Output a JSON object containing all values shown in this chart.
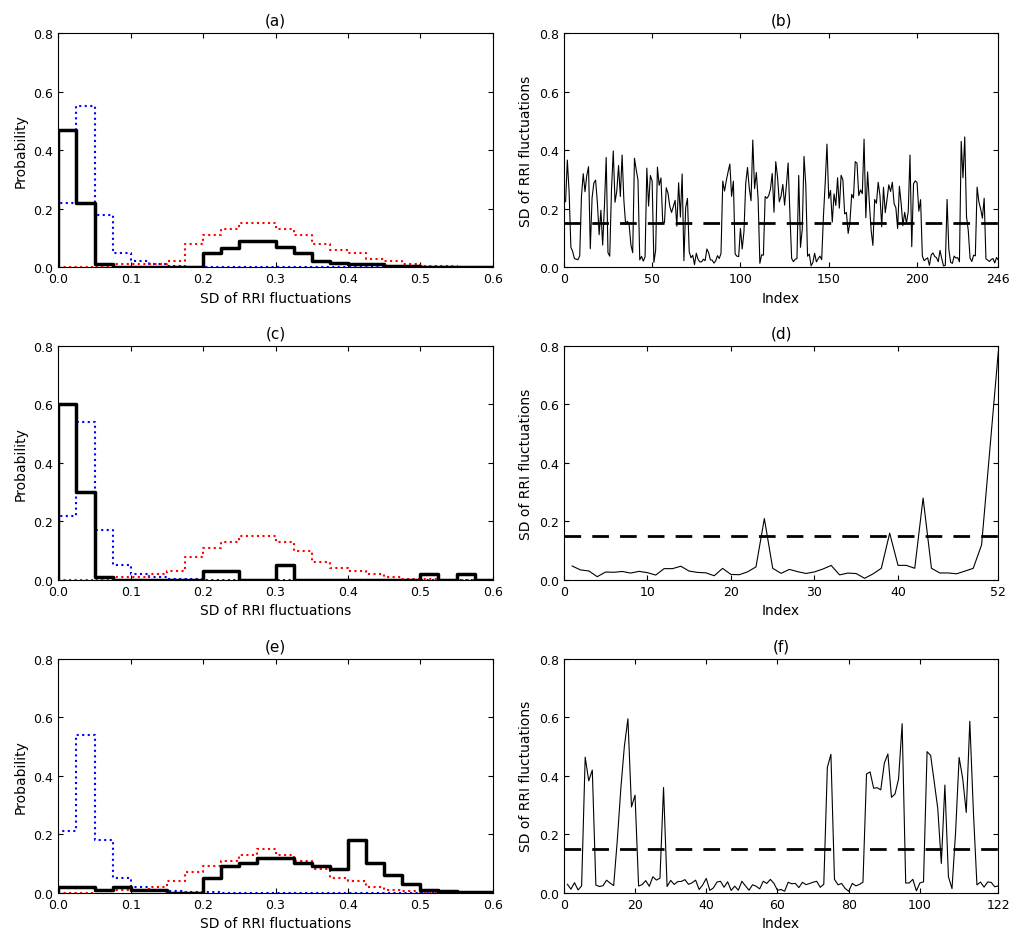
{
  "panels_left": {
    "a": {
      "title": "(a)",
      "xlabel": "SD of RRI fluctuations",
      "ylabel": "Probability",
      "xlim": [
        0,
        0.6
      ],
      "ylim": [
        0,
        0.8
      ],
      "xticks": [
        0,
        0.1,
        0.2,
        0.3,
        0.4,
        0.5,
        0.6
      ],
      "yticks": [
        0,
        0.2,
        0.4,
        0.6,
        0.8
      ],
      "black_bins": [
        0,
        0.025,
        0.05,
        0.075,
        0.1,
        0.125,
        0.15,
        0.175,
        0.2,
        0.225,
        0.25,
        0.275,
        0.3,
        0.325,
        0.35,
        0.375,
        0.4,
        0.425,
        0.45,
        0.475,
        0.5,
        0.525,
        0.55,
        0.575,
        0.6
      ],
      "black_vals": [
        0.47,
        0.22,
        0.01,
        0.0,
        0.0,
        0.0,
        0.0,
        0.0,
        0.05,
        0.065,
        0.09,
        0.09,
        0.07,
        0.05,
        0.02,
        0.015,
        0.01,
        0.01,
        0.005,
        0.003,
        0.002,
        0.001,
        0.0,
        0.0
      ],
      "blue_bins": [
        0,
        0.025,
        0.05,
        0.075,
        0.1,
        0.125,
        0.15,
        0.175,
        0.2,
        0.225,
        0.25,
        0.6
      ],
      "blue_vals": [
        0.22,
        0.55,
        0.18,
        0.05,
        0.02,
        0.01,
        0.005,
        0.002,
        0.001,
        0.0,
        0.0
      ],
      "red_bins": [
        0,
        0.025,
        0.05,
        0.075,
        0.1,
        0.125,
        0.15,
        0.175,
        0.2,
        0.225,
        0.25,
        0.275,
        0.3,
        0.325,
        0.35,
        0.375,
        0.4,
        0.425,
        0.45,
        0.475,
        0.5,
        0.525,
        0.55,
        0.575,
        0.6
      ],
      "red_vals": [
        0.0,
        0.0,
        0.005,
        0.01,
        0.01,
        0.01,
        0.02,
        0.08,
        0.11,
        0.13,
        0.15,
        0.15,
        0.13,
        0.11,
        0.08,
        0.06,
        0.05,
        0.03,
        0.02,
        0.01,
        0.005,
        0.003,
        0.002,
        0.001
      ]
    },
    "c": {
      "title": "(c)",
      "xlabel": "SD of RRI fluctuations",
      "ylabel": "Probability",
      "xlim": [
        0,
        0.6
      ],
      "ylim": [
        0,
        0.8
      ],
      "xticks": [
        0,
        0.1,
        0.2,
        0.3,
        0.4,
        0.5,
        0.6
      ],
      "yticks": [
        0,
        0.2,
        0.4,
        0.6,
        0.8
      ],
      "black_bins": [
        0,
        0.025,
        0.05,
        0.075,
        0.1,
        0.125,
        0.15,
        0.175,
        0.2,
        0.225,
        0.25,
        0.275,
        0.3,
        0.325,
        0.35,
        0.375,
        0.4,
        0.425,
        0.45,
        0.475,
        0.5,
        0.525,
        0.55,
        0.575,
        0.6
      ],
      "black_vals": [
        0.6,
        0.3,
        0.01,
        0.0,
        0.0,
        0.0,
        0.0,
        0.0,
        0.03,
        0.03,
        0.0,
        0.0,
        0.05,
        0.0,
        0.0,
        0.0,
        0.0,
        0.0,
        0.0,
        0.0,
        0.02,
        0.0,
        0.02,
        0.0
      ],
      "blue_bins": [
        0,
        0.025,
        0.05,
        0.075,
        0.1,
        0.125,
        0.15,
        0.175,
        0.2,
        0.225,
        0.25,
        0.6
      ],
      "blue_vals": [
        0.22,
        0.54,
        0.17,
        0.05,
        0.02,
        0.01,
        0.005,
        0.002,
        0.001,
        0.0,
        0.0
      ],
      "red_bins": [
        0,
        0.025,
        0.05,
        0.075,
        0.1,
        0.125,
        0.15,
        0.175,
        0.2,
        0.225,
        0.25,
        0.275,
        0.3,
        0.325,
        0.35,
        0.375,
        0.4,
        0.425,
        0.45,
        0.475,
        0.5,
        0.525,
        0.55,
        0.575,
        0.6
      ],
      "red_vals": [
        0.0,
        0.0,
        0.005,
        0.01,
        0.01,
        0.02,
        0.03,
        0.08,
        0.11,
        0.13,
        0.15,
        0.15,
        0.13,
        0.1,
        0.06,
        0.04,
        0.03,
        0.02,
        0.01,
        0.005,
        0.003,
        0.001,
        0.0,
        0.0
      ]
    },
    "e": {
      "title": "(e)",
      "xlabel": "SD of RRI fluctuations",
      "ylabel": "Probability",
      "xlim": [
        0,
        0.6
      ],
      "ylim": [
        0,
        0.8
      ],
      "xticks": [
        0,
        0.1,
        0.2,
        0.3,
        0.4,
        0.5,
        0.6
      ],
      "yticks": [
        0,
        0.2,
        0.4,
        0.6,
        0.8
      ],
      "black_bins": [
        0,
        0.025,
        0.05,
        0.075,
        0.1,
        0.125,
        0.15,
        0.175,
        0.2,
        0.225,
        0.25,
        0.275,
        0.3,
        0.325,
        0.35,
        0.375,
        0.4,
        0.425,
        0.45,
        0.475,
        0.5,
        0.525,
        0.55,
        0.575,
        0.6
      ],
      "black_vals": [
        0.02,
        0.02,
        0.01,
        0.02,
        0.01,
        0.01,
        0.0,
        0.0,
        0.05,
        0.09,
        0.1,
        0.12,
        0.12,
        0.1,
        0.09,
        0.08,
        0.18,
        0.1,
        0.06,
        0.03,
        0.01,
        0.005,
        0.003,
        0.001
      ],
      "blue_bins": [
        0,
        0.025,
        0.05,
        0.075,
        0.1,
        0.125,
        0.15,
        0.175,
        0.2,
        0.225,
        0.25,
        0.6
      ],
      "blue_vals": [
        0.21,
        0.54,
        0.18,
        0.05,
        0.02,
        0.01,
        0.005,
        0.002,
        0.001,
        0.0,
        0.0
      ],
      "red_bins": [
        0,
        0.025,
        0.05,
        0.075,
        0.1,
        0.125,
        0.15,
        0.175,
        0.2,
        0.225,
        0.25,
        0.275,
        0.3,
        0.325,
        0.35,
        0.375,
        0.4,
        0.425,
        0.45,
        0.475,
        0.5,
        0.525,
        0.55,
        0.575,
        0.6
      ],
      "red_vals": [
        0.0,
        0.0,
        0.005,
        0.01,
        0.01,
        0.02,
        0.04,
        0.07,
        0.09,
        0.11,
        0.13,
        0.15,
        0.13,
        0.11,
        0.08,
        0.05,
        0.04,
        0.02,
        0.01,
        0.005,
        0.003,
        0.001,
        0.0,
        0.0
      ]
    }
  },
  "panels_right": {
    "b": {
      "title": "(b)",
      "xlabel": "Index",
      "ylabel": "SD of RRI fluctuations",
      "xlim": [
        0,
        246
      ],
      "ylim": [
        0,
        0.8
      ],
      "xticks": [
        0,
        50,
        100,
        150,
        200,
        246
      ],
      "yticks": [
        0,
        0.2,
        0.4,
        0.6,
        0.8
      ],
      "threshold": 0.15
    },
    "d": {
      "title": "(d)",
      "xlabel": "Index",
      "ylabel": "SD of RRI fluctuations",
      "xlim": [
        0,
        52
      ],
      "ylim": [
        0,
        0.8
      ],
      "xticks": [
        0,
        10,
        20,
        30,
        40,
        52
      ],
      "yticks": [
        0,
        0.2,
        0.4,
        0.6,
        0.8
      ],
      "threshold": 0.15
    },
    "f": {
      "title": "(f)",
      "xlabel": "Index",
      "ylabel": "SD of RRI fluctuations",
      "xlim": [
        0,
        122
      ],
      "ylim": [
        0,
        0.8
      ],
      "xticks": [
        0,
        20,
        40,
        60,
        80,
        100,
        122
      ],
      "yticks": [
        0,
        0.2,
        0.4,
        0.6,
        0.8
      ],
      "threshold": 0.15
    }
  }
}
